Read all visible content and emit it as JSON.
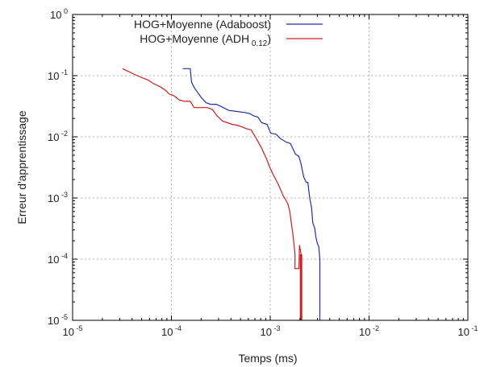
{
  "chart_data": {
    "type": "line",
    "title": "",
    "xlabel": "Temps (ms)",
    "ylabel": "Erreur d'apprentissage",
    "xscale": "log",
    "yscale": "log",
    "xlim": [
      1e-05,
      0.1
    ],
    "ylim": [
      1e-05,
      1
    ],
    "grid": true,
    "legend_position": "top-right",
    "x_ticks": [
      {
        "base": "10",
        "exp": "-5"
      },
      {
        "base": "10",
        "exp": "-4"
      },
      {
        "base": "10",
        "exp": "-3"
      },
      {
        "base": "10",
        "exp": "-2"
      },
      {
        "base": "10",
        "exp": "-1"
      }
    ],
    "y_ticks": [
      {
        "base": "10",
        "exp": "0"
      },
      {
        "base": "10",
        "exp": "-1"
      },
      {
        "base": "10",
        "exp": "-2"
      },
      {
        "base": "10",
        "exp": "-3"
      },
      {
        "base": "10",
        "exp": "-4"
      },
      {
        "base": "10",
        "exp": "-5"
      }
    ],
    "series": [
      {
        "name": "HOG+Moyenne (Adaboost)",
        "color": "#1f2fa8",
        "x": [
          0.00013,
          0.000155,
          0.00016,
          0.00017,
          0.0002,
          0.000225,
          0.00025,
          0.000285,
          0.00031,
          0.00038,
          0.00046,
          0.00055,
          0.00062,
          0.00068,
          0.00075,
          0.00082,
          0.00093,
          0.00101,
          0.00115,
          0.00125,
          0.00145,
          0.0016,
          0.0018,
          0.00195,
          0.00205,
          0.00218,
          0.00232,
          0.0024,
          0.00252,
          0.00262,
          0.0027,
          0.00282,
          0.0029,
          0.003,
          0.0031,
          0.00318,
          0.00318
        ],
        "y": [
          0.13,
          0.13,
          0.078,
          0.064,
          0.044,
          0.036,
          0.034,
          0.034,
          0.032,
          0.027,
          0.026,
          0.025,
          0.024,
          0.022,
          0.021,
          0.017,
          0.016,
          0.0115,
          0.011,
          0.0095,
          0.0082,
          0.0078,
          0.0052,
          0.0048,
          0.0036,
          0.0022,
          0.0018,
          0.0018,
          0.00095,
          0.0007,
          0.00039,
          0.00032,
          0.00023,
          0.00018,
          0.00016,
          0.0001,
          1e-05
        ]
      },
      {
        "name": "HOG+Moyenne  (ADH",
        "name_sub": "0.12",
        "name_suffix": ")",
        "color": "#c8201e",
        "x": [
          3.2e-05,
          4.5e-05,
          5.8e-05,
          6.5e-05,
          7.8e-05,
          8.8e-05,
          9.5e-05,
          0.000103,
          0.00011,
          0.00012,
          0.000135,
          0.000155,
          0.00017,
          0.00023,
          0.00026,
          0.00029,
          0.00033,
          0.00037,
          0.00041,
          0.00046,
          0.00052,
          0.00058,
          0.00064,
          0.00072,
          0.00082,
          0.00091,
          0.00098,
          0.00106,
          0.0012,
          0.00135,
          0.0015,
          0.00158,
          0.00163,
          0.0017,
          0.00178,
          0.00178,
          0.00185,
          0.00195,
          0.00198,
          0.00205,
          0.00205
        ],
        "y": [
          0.13,
          0.1,
          0.085,
          0.075,
          0.065,
          0.057,
          0.05,
          0.048,
          0.045,
          0.04,
          0.038,
          0.038,
          0.03,
          0.03,
          0.028,
          0.022,
          0.018,
          0.017,
          0.016,
          0.0155,
          0.0145,
          0.0135,
          0.013,
          0.0095,
          0.0065,
          0.0045,
          0.0033,
          0.0025,
          0.0017,
          0.0011,
          0.00082,
          0.0006,
          0.0004,
          0.00025,
          0.00012,
          7e-05,
          7e-05,
          7e-05,
          0.00017,
          0.00012,
          1e-05
        ]
      }
    ]
  }
}
